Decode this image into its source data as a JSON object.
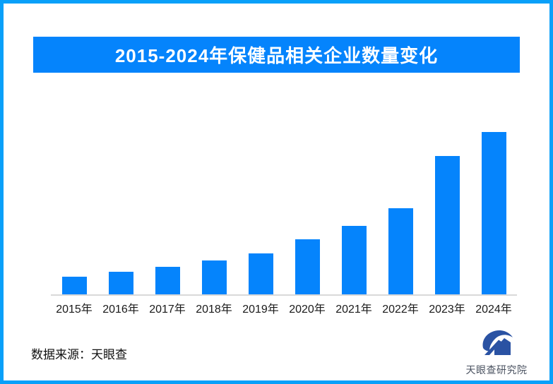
{
  "colors": {
    "accent": "#0584FC",
    "frame_border": "#09A0F9",
    "axis_line": "#D9D9D9",
    "label": "#1A1A1A",
    "logo_blue": "#2A52A3",
    "logo_text": "#4A5260"
  },
  "title_banner": {
    "text": "2015-2024年保健品相关企业数量变化",
    "bg_color": "#0584FC",
    "text_color": "#FFFFFF"
  },
  "chart_data": {
    "type": "bar",
    "title": "2015-2024年保健品相关企业数量变化",
    "categories": [
      "2015年",
      "2016年",
      "2017年",
      "2018年",
      "2019年",
      "2020年",
      "2021年",
      "2022年",
      "2023年",
      "2024年"
    ],
    "values": [
      11,
      14,
      17,
      21,
      25,
      34,
      42,
      53,
      85,
      100
    ],
    "xlabel": "",
    "ylabel": "",
    "ylim": [
      0,
      100
    ],
    "grid": false,
    "legend": false,
    "y_axis_shown": false,
    "value_labels_shown": false,
    "note": "No y-axis or data labels in source image; values estimated from bar heights, normalized to 2024 = 100",
    "bar_color": "#0584FC",
    "axis_line_color": "#D9D9D9"
  },
  "footer": {
    "source_label": "数据来源：天眼查"
  },
  "logo": {
    "icon": "tianyancha-eye-icon",
    "name": "天眼查研究院",
    "icon_color": "#2A52A3",
    "text_color": "#4A5260"
  }
}
